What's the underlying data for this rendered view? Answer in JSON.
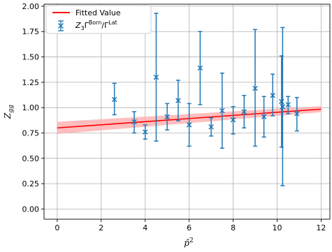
{
  "chart_data": {
    "type": "scatter",
    "title": "",
    "xlabel": "p̂²",
    "ylabel": "Z_gg",
    "xlim": [
      -0.6,
      12.4
    ],
    "ylim": [
      -0.1,
      2.02
    ],
    "grid": true,
    "legend_position": "upper-left",
    "x_ticks": [
      0,
      2,
      4,
      6,
      8,
      10,
      12
    ],
    "y_ticks": [
      0.0,
      0.25,
      0.5,
      0.75,
      1.0,
      1.25,
      1.5,
      1.75,
      2.0
    ],
    "x_tick_labels": [
      "0",
      "2",
      "4",
      "6",
      "8",
      "10",
      "12"
    ],
    "y_tick_labels": [
      "0.00",
      "0.25",
      "0.50",
      "0.75",
      "1.00",
      "1.25",
      "1.50",
      "1.75",
      "2.00"
    ],
    "fit": {
      "name": "Fitted Value",
      "color": "#ff0000",
      "band_color": "#ffb3b3",
      "x": [
        0,
        12
      ],
      "y": [
        0.8,
        0.985
      ],
      "band_lower": [
        0.74,
        0.955
      ],
      "band_upper": [
        0.86,
        1.015
      ]
    },
    "series": [
      {
        "name": "Z₃Γ^Born/Γ^Lat",
        "color": "#1f77b4",
        "points": [
          {
            "x": 2.6,
            "y": 1.08,
            "yerr_low": 0.93,
            "yerr_high": 1.24
          },
          {
            "x": 3.5,
            "y": 0.86,
            "yerr_low": 0.75,
            "yerr_high": 0.96
          },
          {
            "x": 4.0,
            "y": 0.76,
            "yerr_low": 0.69,
            "yerr_high": 0.83
          },
          {
            "x": 4.5,
            "y": 1.3,
            "yerr_low": 0.67,
            "yerr_high": 1.93
          },
          {
            "x": 5.0,
            "y": 0.91,
            "yerr_low": 0.78,
            "yerr_high": 1.04
          },
          {
            "x": 5.5,
            "y": 1.07,
            "yerr_low": 0.87,
            "yerr_high": 1.27
          },
          {
            "x": 6.0,
            "y": 0.83,
            "yerr_low": 0.62,
            "yerr_high": 1.04
          },
          {
            "x": 6.5,
            "y": 1.39,
            "yerr_low": 1.03,
            "yerr_high": 1.75
          },
          {
            "x": 7.0,
            "y": 0.81,
            "yerr_low": 0.72,
            "yerr_high": 0.9
          },
          {
            "x": 7.5,
            "y": 0.97,
            "yerr_low": 0.6,
            "yerr_high": 1.34
          },
          {
            "x": 8.0,
            "y": 0.88,
            "yerr_low": 0.74,
            "yerr_high": 1.01
          },
          {
            "x": 8.5,
            "y": 0.96,
            "yerr_low": 0.8,
            "yerr_high": 1.12
          },
          {
            "x": 9.0,
            "y": 1.19,
            "yerr_low": 0.62,
            "yerr_high": 1.77
          },
          {
            "x": 9.4,
            "y": 0.91,
            "yerr_low": 0.71,
            "yerr_high": 1.11
          },
          {
            "x": 9.8,
            "y": 1.12,
            "yerr_low": 0.92,
            "yerr_high": 1.33
          },
          {
            "x": 10.2,
            "y": 1.06,
            "yerr_low": 0.61,
            "yerr_high": 1.51
          },
          {
            "x": 10.25,
            "y": 1.01,
            "yerr_low": 0.23,
            "yerr_high": 1.79
          },
          {
            "x": 10.5,
            "y": 1.03,
            "yerr_low": 0.94,
            "yerr_high": 1.11
          },
          {
            "x": 10.9,
            "y": 0.94,
            "yerr_low": 0.77,
            "yerr_high": 1.1
          }
        ]
      }
    ]
  }
}
